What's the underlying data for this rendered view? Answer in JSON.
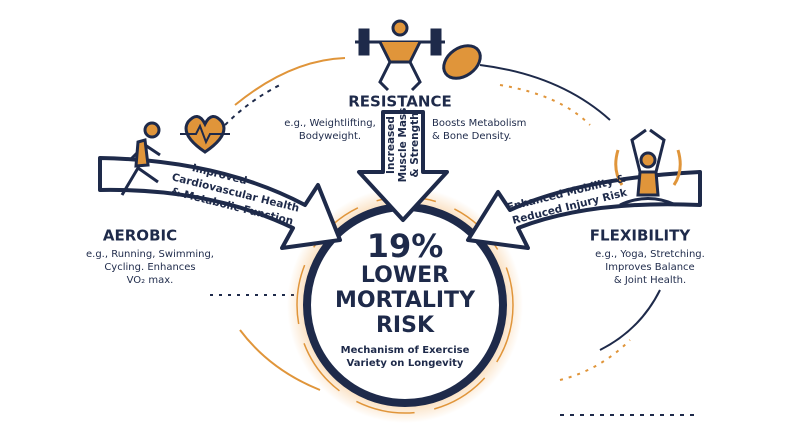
{
  "resistance": {
    "title": "RESISTANCE",
    "examples": [
      "e.g., Weightlifting,",
      "Bodyweight."
    ],
    "effect": [
      "Increased",
      "Muscle Mass",
      "& Strength"
    ],
    "benefit": [
      "Boosts Metabolism",
      "& Bone Density."
    ]
  },
  "aerobic": {
    "title": "AEROBIC",
    "examples": [
      "e.g., Running, Swimming,",
      "Cycling. Enhances",
      "VO₂ max."
    ],
    "effect": [
      "Improved",
      "Cardiovascular Health",
      "& Metabolic Function"
    ]
  },
  "flexibility": {
    "title": "FLEXIBILITY",
    "examples": [
      "e.g., Yoga, Stretching.",
      "Improves Balance",
      "& Joint Health."
    ],
    "effect": [
      "Enhanced Mobility &",
      "Reduced Injury Risk"
    ]
  },
  "center": {
    "headline": "19%",
    "lines": [
      "LOWER",
      "MORTALITY",
      "RISK"
    ],
    "caption": [
      "Mechanism of Exercise",
      "Variety on Longevity"
    ]
  }
}
